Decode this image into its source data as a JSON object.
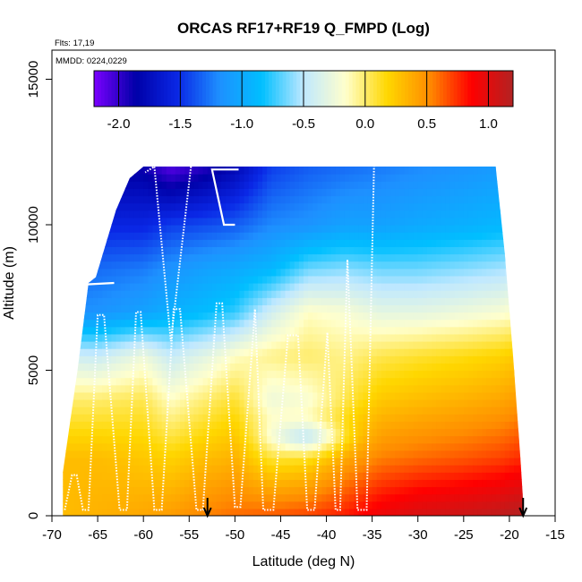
{
  "chart_data": {
    "type": "heatmap",
    "title": "ORCAS RF17+RF19 Q_FMPD (Log)",
    "xlabel": "Latitude (deg N)",
    "ylabel": "Altitude (m)",
    "xlim": [
      -70,
      -15
    ],
    "ylim": [
      0,
      16000
    ],
    "x_ticks": [
      -70,
      -65,
      -60,
      -55,
      -50,
      -45,
      -40,
      -35,
      -30,
      -25,
      -20,
      -15
    ],
    "y_ticks": [
      0,
      5000,
      10000,
      15000
    ],
    "annotations": {
      "flights": "Flts: 17,19",
      "dates": "MMDD: 0224,0229"
    },
    "colorbar": {
      "min": -2.2,
      "max": 1.2,
      "ticks": [
        -2.0,
        -1.5,
        -1.0,
        -0.5,
        0.0,
        0.5,
        1.0
      ],
      "tick_labels": [
        "-2.0",
        "-1.5",
        "-1.0",
        "-0.5",
        "0.0",
        "0.5",
        "1.0"
      ],
      "colors": [
        "#7b00ff",
        "#0000a8",
        "#0a28e6",
        "#1e90ff",
        "#00bfff",
        "#bfe8ff",
        "#ffffcc",
        "#ffd700",
        "#ff8c00",
        "#ff0000",
        "#b22222"
      ]
    },
    "field_altitudes": [
      0,
      2000,
      4000,
      5500,
      7000,
      8500,
      10000,
      12000
    ],
    "field_columns": [
      {
        "lat": -69,
        "values": [
          0.3,
          0.3,
          0.0,
          -0.4,
          -1.2,
          -1.3,
          -1.5,
          -1.7
        ]
      },
      {
        "lat": -65,
        "values": [
          0.35,
          0.3,
          0.0,
          -0.45,
          -1.15,
          -1.3,
          -1.55,
          -1.9
        ]
      },
      {
        "lat": -60,
        "values": [
          0.4,
          0.25,
          0.05,
          -0.25,
          -1.05,
          -1.25,
          -1.55,
          -1.9
        ]
      },
      {
        "lat": -57,
        "values": [
          0.45,
          0.2,
          -0.15,
          -0.45,
          -0.95,
          -1.15,
          -1.45,
          -2.1
        ]
      },
      {
        "lat": -53,
        "values": [
          0.55,
          0.3,
          0.0,
          -0.3,
          -0.85,
          -1.05,
          -1.4,
          -1.95
        ]
      },
      {
        "lat": -50,
        "values": [
          0.6,
          0.35,
          0.1,
          -0.15,
          -0.75,
          -1.0,
          -1.35,
          -1.8
        ]
      },
      {
        "lat": -46,
        "values": [
          0.65,
          0.1,
          -0.25,
          -0.05,
          -0.4,
          -0.9,
          -1.2,
          -1.45
        ]
      },
      {
        "lat": -42,
        "values": [
          0.7,
          0.15,
          -0.2,
          0.0,
          -0.15,
          -0.65,
          -1.15,
          -1.35
        ]
      },
      {
        "lat": -38,
        "values": [
          0.8,
          0.4,
          0.05,
          -0.05,
          -0.2,
          -0.6,
          -1.05,
          -1.3
        ]
      },
      {
        "lat": -34,
        "values": [
          0.95,
          0.55,
          0.25,
          0.05,
          -0.3,
          -0.65,
          -1.05,
          -1.25
        ]
      },
      {
        "lat": -30,
        "values": [
          1.05,
          0.6,
          0.3,
          0.1,
          -0.3,
          -0.65,
          -1.0,
          -1.2
        ]
      },
      {
        "lat": -25,
        "values": [
          1.1,
          0.65,
          0.35,
          0.15,
          -0.25,
          -0.6,
          -0.95,
          -1.15
        ]
      },
      {
        "lat": -21,
        "values": [
          1.15,
          0.7,
          0.4,
          0.2,
          -0.2,
          -0.55,
          -0.9,
          -1.1
        ]
      },
      {
        "lat": -19,
        "values": [
          1.2,
          0.75,
          0.45,
          0.25,
          -0.15,
          -0.5,
          -0.85,
          -1.05
        ]
      }
    ],
    "coverage_top": [
      [
        -68.8,
        1500
      ],
      [
        -67.2,
        5000
      ],
      [
        -66.0,
        8000
      ],
      [
        -65.2,
        8200
      ],
      [
        -63.0,
        10500
      ],
      [
        -61.5,
        11600
      ],
      [
        -60.0,
        12000
      ],
      [
        -21.5,
        12000
      ],
      [
        -20.5,
        9000
      ],
      [
        -19.6,
        5500
      ],
      [
        -18.8,
        2000
      ],
      [
        -18.4,
        0
      ]
    ],
    "flight_track": [
      [
        -68.6,
        200
      ],
      [
        -67.8,
        1400
      ],
      [
        -67.3,
        1400
      ],
      [
        -66.6,
        200
      ],
      [
        -66.0,
        200
      ],
      [
        -65.0,
        6900
      ],
      [
        -64.3,
        6900
      ],
      [
        -62.6,
        200
      ],
      [
        -61.8,
        200
      ],
      [
        -60.8,
        7000
      ],
      [
        -60.3,
        7000
      ],
      [
        -58.8,
        200
      ],
      [
        -58.0,
        200
      ],
      [
        -56.7,
        7100
      ],
      [
        -56.0,
        7100
      ],
      [
        -54.2,
        200
      ],
      [
        -53.5,
        200
      ],
      [
        -52.0,
        7300
      ],
      [
        -51.4,
        7300
      ],
      [
        -50.0,
        300
      ],
      [
        -49.4,
        300
      ],
      [
        -47.8,
        7100
      ],
      [
        -46.9,
        200
      ],
      [
        -45.8,
        200
      ],
      [
        -44.2,
        6200
      ],
      [
        -43.1,
        6200
      ],
      [
        -42.1,
        200
      ],
      [
        -41.3,
        200
      ],
      [
        -39.9,
        6300
      ],
      [
        -39.0,
        200
      ],
      [
        -38.5,
        200
      ],
      [
        -37.7,
        8800
      ],
      [
        -36.6,
        200
      ],
      [
        -35.6,
        200
      ],
      [
        -34.8,
        12000
      ]
    ],
    "flight_track_upper": [
      [
        -54.8,
        12000
      ],
      [
        -57.0,
        6000
      ],
      [
        -58.8,
        12000
      ],
      [
        -59.8,
        11800
      ]
    ],
    "plateau_segments": [
      [
        [
          -66.2,
          7950
        ],
        [
          -63.2,
          8000
        ]
      ],
      [
        [
          -49.6,
          11900
        ],
        [
          -52.5,
          11900
        ],
        [
          -51.2,
          10000
        ],
        [
          -50.0,
          10000
        ]
      ]
    ],
    "arrows": [
      -53.0,
      -18.5
    ]
  }
}
